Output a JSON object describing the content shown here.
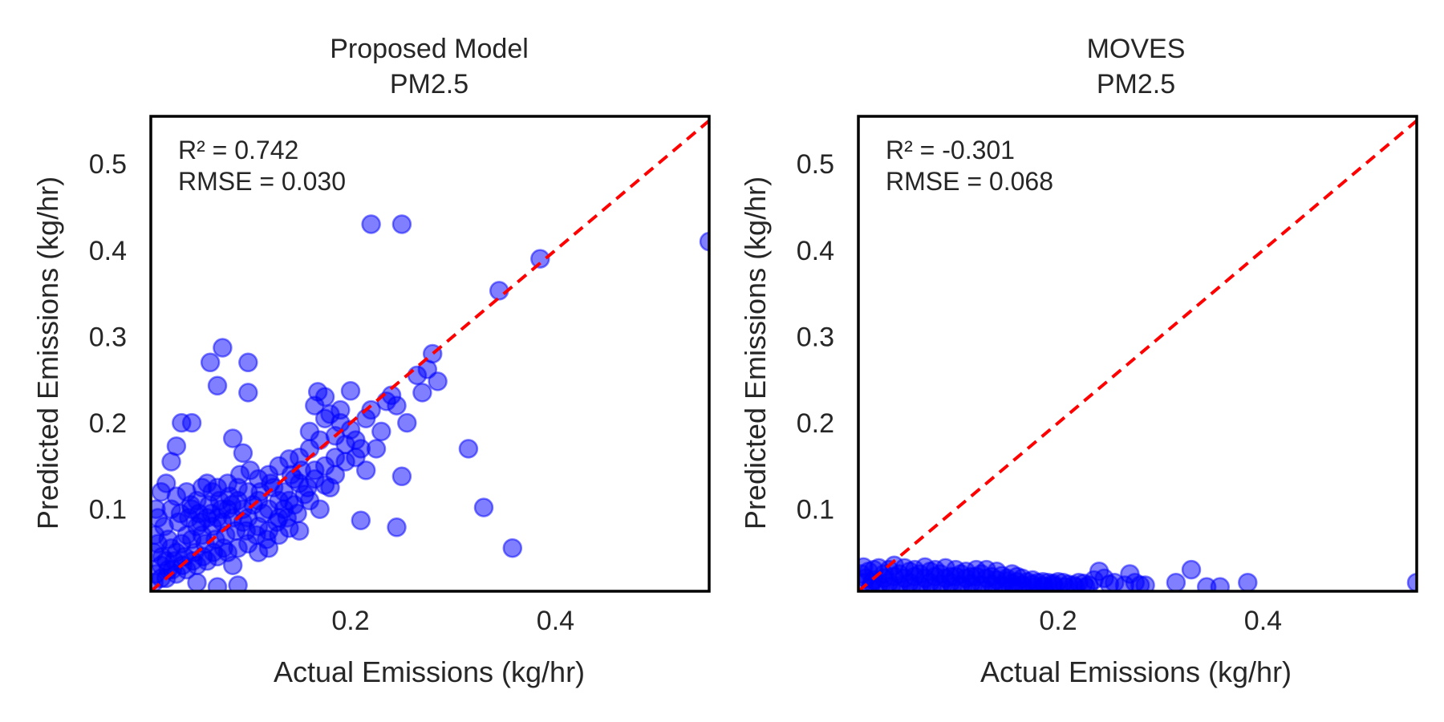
{
  "colors": {
    "points": "#0000ff",
    "diagonal": "#ff0000",
    "frame": "#000000",
    "text": "#262626"
  },
  "chart_data": [
    {
      "type": "scatter",
      "title_line1": "Proposed Model",
      "title_line2": "PM2.5",
      "xlabel": "Actual Emissions (kg/hr)",
      "ylabel": "Predicted Emissions (kg/hr)",
      "xlim": [
        0.005,
        0.55
      ],
      "ylim": [
        0.005,
        0.555
      ],
      "xticks": [
        0.2,
        0.4
      ],
      "xtick_labels": [
        "0.2",
        "0.4"
      ],
      "yticks": [
        0.1,
        0.2,
        0.3,
        0.4,
        0.5
      ],
      "ytick_labels": [
        "0.1",
        "0.2",
        "0.3",
        "0.4",
        "0.5"
      ],
      "annotation_r2": "R² = 0.742",
      "annotation_rmse": "RMSE = 0.030",
      "reference_line": "y = x",
      "points": [
        [
          0.22,
          0.43
        ],
        [
          0.25,
          0.43
        ],
        [
          0.55,
          0.41
        ],
        [
          0.385,
          0.39
        ],
        [
          0.345,
          0.353
        ],
        [
          0.075,
          0.287
        ],
        [
          0.063,
          0.27
        ],
        [
          0.1,
          0.27
        ],
        [
          0.07,
          0.243
        ],
        [
          0.1,
          0.235
        ],
        [
          0.035,
          0.2
        ],
        [
          0.045,
          0.2
        ],
        [
          0.03,
          0.173
        ],
        [
          0.025,
          0.155
        ],
        [
          0.085,
          0.182
        ],
        [
          0.095,
          0.165
        ],
        [
          0.28,
          0.28
        ],
        [
          0.275,
          0.262
        ],
        [
          0.265,
          0.255
        ],
        [
          0.285,
          0.248
        ],
        [
          0.27,
          0.235
        ],
        [
          0.2,
          0.237
        ],
        [
          0.235,
          0.225
        ],
        [
          0.24,
          0.232
        ],
        [
          0.255,
          0.2
        ],
        [
          0.245,
          0.22
        ],
        [
          0.168,
          0.236
        ],
        [
          0.175,
          0.205
        ],
        [
          0.19,
          0.2
        ],
        [
          0.23,
          0.19
        ],
        [
          0.2,
          0.192
        ],
        [
          0.225,
          0.17
        ],
        [
          0.215,
          0.145
        ],
        [
          0.25,
          0.138
        ],
        [
          0.315,
          0.17
        ],
        [
          0.33,
          0.102
        ],
        [
          0.21,
          0.087
        ],
        [
          0.245,
          0.079
        ],
        [
          0.358,
          0.055
        ],
        [
          0.18,
          0.125
        ],
        [
          0.15,
          0.16
        ],
        [
          0.16,
          0.17
        ],
        [
          0.14,
          0.158
        ],
        [
          0.13,
          0.15
        ],
        [
          0.12,
          0.14
        ],
        [
          0.11,
          0.135
        ],
        [
          0.15,
          0.13
        ],
        [
          0.16,
          0.11
        ],
        [
          0.14,
          0.11
        ],
        [
          0.17,
          0.1
        ],
        [
          0.13,
          0.09
        ],
        [
          0.12,
          0.1
        ],
        [
          0.11,
          0.11
        ],
        [
          0.1,
          0.12
        ],
        [
          0.095,
          0.1
        ],
        [
          0.09,
          0.11
        ],
        [
          0.085,
          0.09
        ],
        [
          0.08,
          0.1
        ],
        [
          0.075,
          0.085
        ],
        [
          0.07,
          0.09
        ],
        [
          0.065,
          0.08
        ],
        [
          0.06,
          0.09
        ],
        [
          0.055,
          0.07
        ],
        [
          0.05,
          0.08
        ],
        [
          0.045,
          0.065
        ],
        [
          0.04,
          0.07
        ],
        [
          0.035,
          0.06
        ],
        [
          0.03,
          0.05
        ],
        [
          0.025,
          0.055
        ],
        [
          0.02,
          0.04
        ],
        [
          0.015,
          0.035
        ],
        [
          0.01,
          0.025
        ],
        [
          0.008,
          0.015
        ],
        [
          0.012,
          0.06
        ],
        [
          0.018,
          0.08
        ],
        [
          0.01,
          0.1
        ],
        [
          0.015,
          0.12
        ],
        [
          0.02,
          0.13
        ],
        [
          0.025,
          0.1
        ],
        [
          0.03,
          0.115
        ],
        [
          0.04,
          0.12
        ],
        [
          0.045,
          0.1
        ],
        [
          0.05,
          0.11
        ],
        [
          0.055,
          0.125
        ],
        [
          0.06,
          0.13
        ],
        [
          0.065,
          0.12
        ],
        [
          0.07,
          0.125
        ],
        [
          0.08,
          0.13
        ],
        [
          0.09,
          0.125
        ],
        [
          0.1,
          0.09
        ],
        [
          0.11,
          0.08
        ],
        [
          0.12,
          0.075
        ],
        [
          0.13,
          0.07
        ],
        [
          0.14,
          0.078
        ],
        [
          0.15,
          0.075
        ],
        [
          0.12,
          0.055
        ],
        [
          0.1,
          0.06
        ],
        [
          0.09,
          0.055
        ],
        [
          0.08,
          0.05
        ],
        [
          0.07,
          0.045
        ],
        [
          0.06,
          0.04
        ],
        [
          0.05,
          0.035
        ],
        [
          0.04,
          0.03
        ],
        [
          0.03,
          0.025
        ],
        [
          0.02,
          0.02
        ],
        [
          0.07,
          0.01
        ],
        [
          0.09,
          0.012
        ],
        [
          0.05,
          0.015
        ],
        [
          0.085,
          0.035
        ],
        [
          0.11,
          0.05
        ],
        [
          0.13,
          0.11
        ],
        [
          0.145,
          0.135
        ],
        [
          0.165,
          0.145
        ],
        [
          0.175,
          0.15
        ],
        [
          0.185,
          0.16
        ],
        [
          0.195,
          0.175
        ],
        [
          0.205,
          0.18
        ],
        [
          0.185,
          0.185
        ],
        [
          0.16,
          0.19
        ],
        [
          0.17,
          0.18
        ],
        [
          0.135,
          0.12
        ],
        [
          0.125,
          0.125
        ],
        [
          0.115,
          0.095
        ],
        [
          0.105,
          0.105
        ],
        [
          0.095,
          0.085
        ],
        [
          0.088,
          0.075
        ],
        [
          0.078,
          0.07
        ],
        [
          0.068,
          0.065
        ],
        [
          0.058,
          0.06
        ],
        [
          0.048,
          0.05
        ],
        [
          0.038,
          0.045
        ],
        [
          0.028,
          0.04
        ],
        [
          0.022,
          0.03
        ],
        [
          0.015,
          0.02
        ],
        [
          0.008,
          0.05
        ],
        [
          0.009,
          0.07
        ],
        [
          0.012,
          0.09
        ],
        [
          0.022,
          0.065
        ],
        [
          0.032,
          0.085
        ],
        [
          0.042,
          0.09
        ],
        [
          0.052,
          0.095
        ],
        [
          0.062,
          0.105
        ],
        [
          0.072,
          0.11
        ],
        [
          0.082,
          0.115
        ],
        [
          0.092,
          0.14
        ],
        [
          0.102,
          0.145
        ],
        [
          0.112,
          0.12
        ],
        [
          0.122,
          0.13
        ],
        [
          0.142,
          0.14
        ],
        [
          0.152,
          0.145
        ],
        [
          0.158,
          0.125
        ],
        [
          0.148,
          0.095
        ],
        [
          0.138,
          0.09
        ],
        [
          0.128,
          0.085
        ],
        [
          0.118,
          0.065
        ],
        [
          0.108,
          0.07
        ],
        [
          0.098,
          0.075
        ],
        [
          0.076,
          0.055
        ],
        [
          0.066,
          0.05
        ],
        [
          0.056,
          0.045
        ],
        [
          0.046,
          0.04
        ],
        [
          0.036,
          0.035
        ],
        [
          0.026,
          0.03
        ],
        [
          0.016,
          0.045
        ],
        [
          0.034,
          0.095
        ],
        [
          0.044,
          0.105
        ],
        [
          0.054,
          0.085
        ],
        [
          0.064,
          0.095
        ],
        [
          0.074,
          0.1
        ],
        [
          0.084,
          0.105
        ],
        [
          0.175,
          0.23
        ],
        [
          0.165,
          0.22
        ],
        [
          0.18,
          0.21
        ],
        [
          0.19,
          0.215
        ],
        [
          0.215,
          0.205
        ],
        [
          0.22,
          0.215
        ],
        [
          0.205,
          0.16
        ],
        [
          0.21,
          0.17
        ],
        [
          0.195,
          0.155
        ],
        [
          0.185,
          0.14
        ],
        [
          0.175,
          0.128
        ],
        [
          0.165,
          0.135
        ],
        [
          0.155,
          0.117
        ],
        [
          0.145,
          0.105
        ],
        [
          0.135,
          0.1
        ]
      ]
    },
    {
      "type": "scatter",
      "title_line1": "MOVES",
      "title_line2": "PM2.5",
      "xlabel": "Actual Emissions (kg/hr)",
      "ylabel": "Predicted Emissions (kg/hr)",
      "xlim": [
        0.005,
        0.55
      ],
      "ylim": [
        0.005,
        0.555
      ],
      "xticks": [
        0.2,
        0.4
      ],
      "xtick_labels": [
        "0.2",
        "0.4"
      ],
      "yticks": [
        0.1,
        0.2,
        0.3,
        0.4,
        0.5
      ],
      "ytick_labels": [
        "0.1",
        "0.2",
        "0.3",
        "0.4",
        "0.5"
      ],
      "annotation_r2": "R² = -0.301",
      "annotation_rmse": "RMSE = 0.068",
      "reference_line": "y = x",
      "points": [
        [
          0.55,
          0.015
        ],
        [
          0.385,
          0.015
        ],
        [
          0.345,
          0.01
        ],
        [
          0.33,
          0.03
        ],
        [
          0.315,
          0.015
        ],
        [
          0.358,
          0.01
        ],
        [
          0.28,
          0.012
        ],
        [
          0.285,
          0.012
        ],
        [
          0.275,
          0.015
        ],
        [
          0.27,
          0.025
        ],
        [
          0.265,
          0.012
        ],
        [
          0.255,
          0.015
        ],
        [
          0.245,
          0.02
        ],
        [
          0.24,
          0.028
        ],
        [
          0.25,
          0.013
        ],
        [
          0.235,
          0.018
        ],
        [
          0.23,
          0.012
        ],
        [
          0.225,
          0.014
        ],
        [
          0.22,
          0.015
        ],
        [
          0.215,
          0.012
        ],
        [
          0.21,
          0.013
        ],
        [
          0.205,
          0.015
        ],
        [
          0.2,
          0.016
        ],
        [
          0.195,
          0.014
        ],
        [
          0.19,
          0.015
        ],
        [
          0.185,
          0.016
        ],
        [
          0.18,
          0.015
        ],
        [
          0.175,
          0.018
        ],
        [
          0.17,
          0.016
        ],
        [
          0.165,
          0.02
        ],
        [
          0.16,
          0.022
        ],
        [
          0.155,
          0.025
        ],
        [
          0.15,
          0.02
        ],
        [
          0.145,
          0.023
        ],
        [
          0.14,
          0.028
        ],
        [
          0.135,
          0.022
        ],
        [
          0.13,
          0.03
        ],
        [
          0.125,
          0.025
        ],
        [
          0.12,
          0.03
        ],
        [
          0.115,
          0.022
        ],
        [
          0.11,
          0.028
        ],
        [
          0.105,
          0.025
        ],
        [
          0.1,
          0.03
        ],
        [
          0.095,
          0.022
        ],
        [
          0.09,
          0.032
        ],
        [
          0.085,
          0.025
        ],
        [
          0.08,
          0.03
        ],
        [
          0.075,
          0.028
        ],
        [
          0.07,
          0.033
        ],
        [
          0.065,
          0.025
        ],
        [
          0.06,
          0.03
        ],
        [
          0.055,
          0.028
        ],
        [
          0.05,
          0.032
        ],
        [
          0.045,
          0.025
        ],
        [
          0.04,
          0.035
        ],
        [
          0.035,
          0.03
        ],
        [
          0.03,
          0.025
        ],
        [
          0.025,
          0.032
        ],
        [
          0.02,
          0.03
        ],
        [
          0.015,
          0.028
        ],
        [
          0.01,
          0.033
        ],
        [
          0.008,
          0.025
        ],
        [
          0.012,
          0.02
        ],
        [
          0.018,
          0.015
        ],
        [
          0.025,
          0.012
        ],
        [
          0.035,
          0.015
        ],
        [
          0.045,
          0.012
        ],
        [
          0.055,
          0.015
        ],
        [
          0.065,
          0.012
        ],
        [
          0.075,
          0.015
        ],
        [
          0.085,
          0.013
        ],
        [
          0.095,
          0.015
        ],
        [
          0.105,
          0.012
        ],
        [
          0.115,
          0.014
        ],
        [
          0.125,
          0.012
        ],
        [
          0.135,
          0.013
        ],
        [
          0.145,
          0.012
        ],
        [
          0.155,
          0.014
        ],
        [
          0.165,
          0.012
        ],
        [
          0.175,
          0.013
        ],
        [
          0.185,
          0.011
        ],
        [
          0.195,
          0.012
        ],
        [
          0.01,
          0.015
        ],
        [
          0.02,
          0.018
        ],
        [
          0.03,
          0.02
        ],
        [
          0.04,
          0.022
        ],
        [
          0.05,
          0.02
        ],
        [
          0.06,
          0.022
        ],
        [
          0.07,
          0.02
        ],
        [
          0.08,
          0.022
        ],
        [
          0.09,
          0.02
        ],
        [
          0.1,
          0.022
        ],
        [
          0.11,
          0.02
        ],
        [
          0.12,
          0.022
        ],
        [
          0.13,
          0.02
        ],
        [
          0.14,
          0.018
        ],
        [
          0.15,
          0.017
        ],
        [
          0.16,
          0.016
        ],
        [
          0.017,
          0.01
        ],
        [
          0.027,
          0.01
        ],
        [
          0.037,
          0.01
        ],
        [
          0.047,
          0.01
        ],
        [
          0.057,
          0.01
        ],
        [
          0.067,
          0.01
        ],
        [
          0.077,
          0.01
        ],
        [
          0.087,
          0.01
        ],
        [
          0.097,
          0.01
        ],
        [
          0.107,
          0.01
        ],
        [
          0.117,
          0.01
        ],
        [
          0.127,
          0.01
        ],
        [
          0.137,
          0.01
        ],
        [
          0.147,
          0.01
        ],
        [
          0.157,
          0.01
        ],
        [
          0.167,
          0.01
        ],
        [
          0.177,
          0.01
        ],
        [
          0.187,
          0.01
        ],
        [
          0.197,
          0.01
        ],
        [
          0.207,
          0.01
        ],
        [
          0.217,
          0.01
        ],
        [
          0.227,
          0.01
        ]
      ]
    }
  ]
}
